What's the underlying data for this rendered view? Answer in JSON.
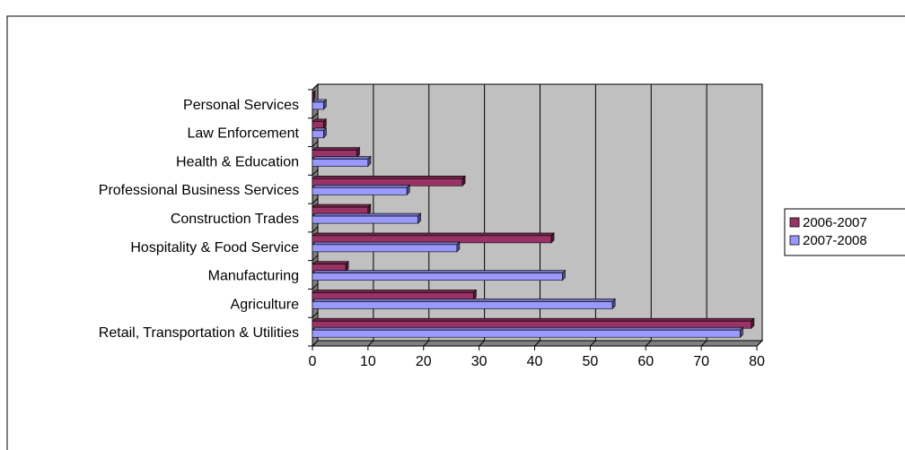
{
  "chart_data": {
    "type": "bar",
    "orientation": "horizontal",
    "three_d": true,
    "categories": [
      "Personal Services",
      "Law Enforcement",
      "Health & Education",
      "Professional Business Services",
      "Construction Trades",
      "Hospitality & Food Service",
      "Manufacturing",
      "Agriculture",
      "Retail, Transportation & Utilities"
    ],
    "series": [
      {
        "name": "2006-2007",
        "color": "#993366",
        "values": [
          0,
          2,
          8,
          27,
          10,
          43,
          6,
          29,
          79
        ]
      },
      {
        "name": "2007-2008",
        "color": "#9999ff",
        "values": [
          2,
          2,
          10,
          17,
          19,
          26,
          45,
          54,
          77
        ]
      }
    ],
    "xlim": [
      0,
      80
    ],
    "xticks": [
      "0",
      "10",
      "20",
      "30",
      "40",
      "50",
      "60",
      "70",
      "80"
    ],
    "grid": true,
    "legend_position": "right",
    "colors": {
      "plot_background": "#c0c0c0",
      "wall_side": "#808080",
      "gridlines": "#000000",
      "frame_border": "#000000"
    }
  }
}
